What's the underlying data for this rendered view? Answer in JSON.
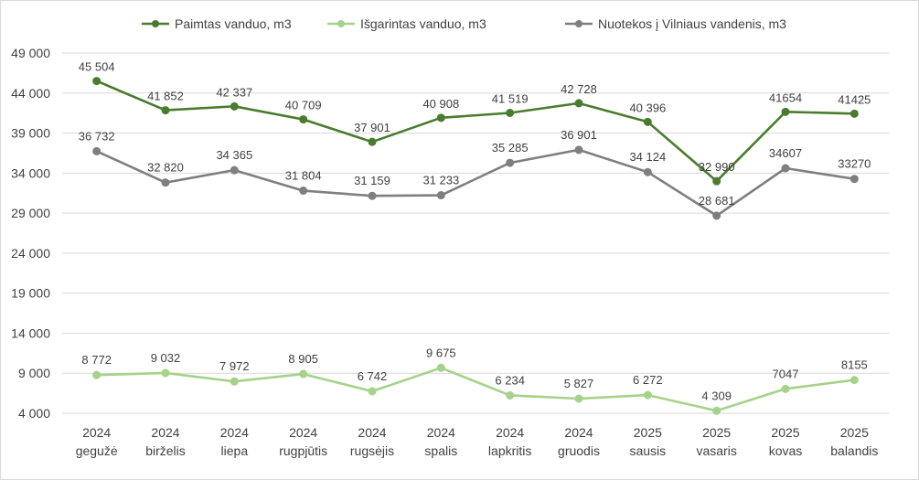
{
  "chart_data": {
    "type": "line",
    "categories": [
      [
        "2024",
        "gegužė"
      ],
      [
        "2024",
        "birželis"
      ],
      [
        "2024",
        "liepa"
      ],
      [
        "2024",
        "rugpjūtis"
      ],
      [
        "2024",
        "rugsėjis"
      ],
      [
        "2024",
        "spalis"
      ],
      [
        "2024",
        "lapkritis"
      ],
      [
        "2024",
        "gruodis"
      ],
      [
        "2025",
        "sausis"
      ],
      [
        "2025",
        "vasaris"
      ],
      [
        "2025",
        "kovas"
      ],
      [
        "2025",
        "balandis"
      ]
    ],
    "series": [
      {
        "name": "Paimtas vanduo, m3",
        "color": "#4a7b2e",
        "values": [
          45504,
          41852,
          42337,
          40709,
          37901,
          40908,
          41519,
          42728,
          40396,
          32990,
          41654,
          41425
        ],
        "labels": [
          "45 504",
          "41 852",
          "42 337",
          "40 709",
          "37 901",
          "40 908",
          "41 519",
          "42 728",
          "40 396",
          "32 990",
          "41654",
          "41425"
        ]
      },
      {
        "name": "Išgarintas vanduo, m3",
        "color": "#a6d28a",
        "values": [
          8772,
          9032,
          7972,
          8905,
          6742,
          9675,
          6234,
          5827,
          6272,
          4309,
          7047,
          8155
        ],
        "labels": [
          "8 772",
          "9 032",
          "7 972",
          "8 905",
          "6 742",
          "9 675",
          "6 234",
          "5 827",
          "6 272",
          "4 309",
          "7047",
          "8155"
        ]
      },
      {
        "name": "Nuotekos į Vilniaus vandenis, m3",
        "color": "#7f7f7f",
        "values": [
          36732,
          32820,
          34365,
          31804,
          31159,
          31233,
          35285,
          36901,
          34124,
          28681,
          34607,
          33270
        ],
        "labels": [
          "36 732",
          "32 820",
          "34 365",
          "31 804",
          "31 159",
          "31 233",
          "35 285",
          "36 901",
          "34 124",
          "28 681",
          "34607",
          "33270"
        ]
      }
    ],
    "yticks": [
      4000,
      9000,
      14000,
      19000,
      24000,
      29000,
      34000,
      39000,
      44000,
      49000
    ],
    "ytick_labels": [
      "4 000",
      "9 000",
      "14 000",
      "19 000",
      "24 000",
      "29 000",
      "34 000",
      "39 000",
      "44 000",
      "49 000"
    ],
    "ylim": [
      4000,
      49000
    ],
    "grid": true,
    "legend": "top"
  }
}
